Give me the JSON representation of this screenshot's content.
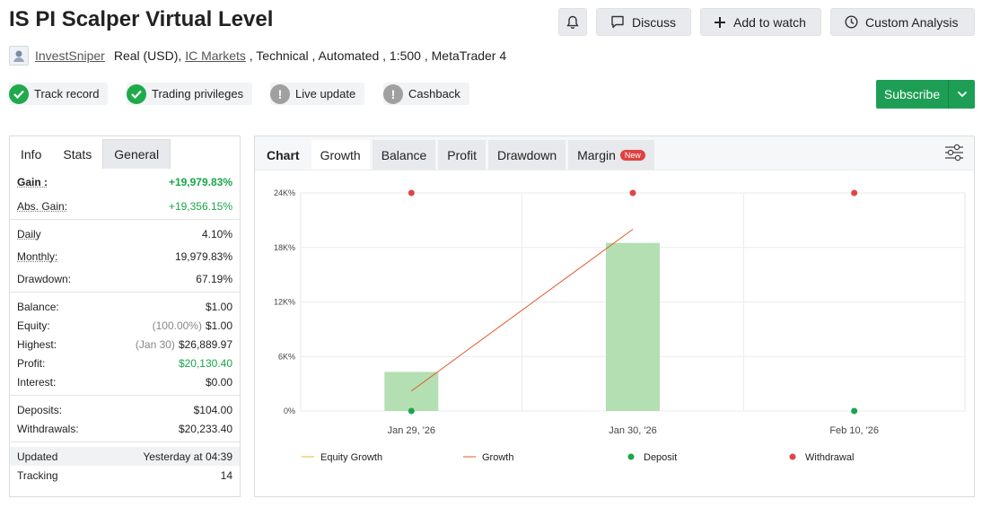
{
  "title": "IS PI Scalper Virtual Level",
  "header_buttons": {
    "bell_icon": "bell-icon",
    "discuss": "Discuss",
    "add_to_watch": "Add to watch",
    "custom_analysis": "Custom Analysis"
  },
  "meta": {
    "author": "InvestSniper",
    "account_type": "Real (USD), ",
    "broker": "IC Markets",
    "details": " , Technical , Automated , 1:500 , MetaTrader 4"
  },
  "badges": [
    {
      "label": "Track record",
      "status": "ok"
    },
    {
      "label": "Trading privileges",
      "status": "ok"
    },
    {
      "label": "Live update",
      "status": "warn"
    },
    {
      "label": "Cashback",
      "status": "warn"
    }
  ],
  "subscribe": "Subscribe",
  "left_tabs": [
    "Info",
    "Stats",
    "General"
  ],
  "stats": {
    "gain": {
      "label": "Gain :",
      "value": "+19,979.83%"
    },
    "abs_gain": {
      "label": "Abs. Gain:",
      "value": "+19,356.15%"
    },
    "daily": {
      "label": "Daily",
      "value": "4.10%"
    },
    "monthly": {
      "label": "Monthly:",
      "value": "19,979.83%"
    },
    "drawdown": {
      "label": "Drawdown:",
      "value": "67.19%"
    },
    "balance": {
      "label": "Balance:",
      "value": "$1.00"
    },
    "equity": {
      "label": "Equity:",
      "sub": "(100.00%)",
      "value": "$1.00"
    },
    "highest": {
      "label": "Highest:",
      "sub": "(Jan 30)",
      "value": "$26,889.97"
    },
    "profit": {
      "label": "Profit:",
      "value": "$20,130.40"
    },
    "interest": {
      "label": "Interest:",
      "value": "$0.00"
    },
    "deposits": {
      "label": "Deposits:",
      "value": "$104.00"
    },
    "withdrawals": {
      "label": "Withdrawals:",
      "value": "$20,233.40"
    },
    "updated": {
      "label": "Updated",
      "value": "Yesterday at 04:39"
    },
    "tracking": {
      "label": "Tracking",
      "value": "14"
    }
  },
  "chart_tabs": {
    "chart": "Chart",
    "growth": "Growth",
    "balance": "Balance",
    "profit": "Profit",
    "drawdown": "Drawdown",
    "margin": "Margin",
    "new_tag": "New"
  },
  "colors": {
    "accent_green": "#1e9e55",
    "growth_bar": "#b3dfb3",
    "equity_line": "#f0b429",
    "growth_line": "#e05a2a",
    "deposit": "#1aa64a",
    "withdrawal": "#e04545"
  },
  "chart_data": {
    "type": "bar",
    "categories": [
      "Jan 29, '26",
      "Jan 30, '26",
      "Feb 10, '26"
    ],
    "ylim": [
      0,
      24000
    ],
    "yticks": [
      0,
      6000,
      12000,
      18000,
      24000
    ],
    "ytick_labels": [
      "0%",
      "6K%",
      "12K%",
      "18K%",
      "24K%"
    ],
    "grid": true,
    "legend": [
      "Equity Growth",
      "Growth",
      "Deposit",
      "Withdrawal"
    ],
    "legend_position": "bottom",
    "series": [
      {
        "name": "Growth",
        "kind": "bar",
        "values": [
          4300,
          18500,
          null
        ]
      },
      {
        "name": "Growth",
        "kind": "line",
        "points": [
          {
            "x": "Jan 29, '26",
            "y": 2200
          },
          {
            "x": "Jan 30, '26",
            "y": 20000
          }
        ]
      },
      {
        "name": "Deposit",
        "kind": "marker",
        "values": [
          0,
          null,
          0
        ]
      },
      {
        "name": "Withdrawal",
        "kind": "marker",
        "values": [
          24000,
          24000,
          24000
        ]
      }
    ]
  }
}
